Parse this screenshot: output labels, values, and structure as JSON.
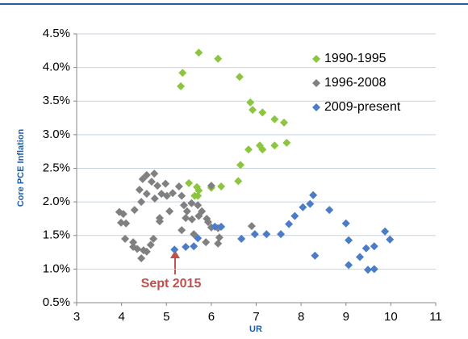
{
  "chart_data": {
    "type": "scatter",
    "y_label": "Core PCE Inflation",
    "x_label": "UR",
    "annotation": "Sept 2015",
    "xlim": [
      3,
      11
    ],
    "xticks": [
      3,
      4,
      5,
      6,
      7,
      8,
      9,
      10,
      11
    ],
    "ylim": [
      0.5,
      4.5
    ],
    "yticks": [
      {
        "value": 0.5,
        "label": "0.5%"
      },
      {
        "value": 1.0,
        "label": "1.0%"
      },
      {
        "value": 1.5,
        "label": "1.5%"
      },
      {
        "value": 2.0,
        "label": "2.0%"
      },
      {
        "value": 2.5,
        "label": "2.5%"
      },
      {
        "value": 3.0,
        "label": "3.0%"
      },
      {
        "value": 3.5,
        "label": "3.5%"
      },
      {
        "value": 4.0,
        "label": "4.0%"
      },
      {
        "value": 4.5,
        "label": "4.5%"
      }
    ],
    "grid": true,
    "legend": "top-right",
    "series": [
      {
        "name": "1990-1995",
        "color": "#8cc63f",
        "x": [
          5.36,
          5.32,
          5.72,
          6.15,
          6.63,
          6.87,
          6.92,
          7.14,
          7.41,
          7.62,
          7.68,
          7.41,
          7.14,
          7.08,
          6.83,
          6.65,
          6.6,
          6.22,
          6.0,
          5.68,
          5.72,
          5.63,
          5.7,
          5.5
        ],
        "values": [
          3.92,
          3.72,
          4.22,
          4.13,
          3.86,
          3.48,
          3.37,
          3.33,
          3.23,
          3.18,
          2.88,
          2.84,
          2.78,
          2.84,
          2.78,
          2.55,
          2.31,
          2.23,
          2.21,
          2.22,
          2.17,
          2.09,
          2.09,
          2.28
        ]
      },
      {
        "name": "1996-2008",
        "color": "#808080",
        "x": [
          3.95,
          4.04,
          3.99,
          4.1,
          4.08,
          4.26,
          4.35,
          4.44,
          4.49,
          4.56,
          4.65,
          4.71,
          4.29,
          4.44,
          4.4,
          4.47,
          4.56,
          4.73,
          4.67,
          4.8,
          4.98,
          4.56,
          4.74,
          4.89,
          5.01,
          5.14,
          5.28,
          5.34,
          5.39,
          5.46,
          5.43,
          5.57,
          5.72,
          5.56,
          5.7,
          5.79,
          5.9,
          5.93,
          6.0,
          6.15,
          6.18,
          6.15,
          5.88,
          5.61,
          5.34,
          4.85,
          4.85,
          5.07,
          6.0,
          6.9,
          4.26
        ],
        "values": [
          1.85,
          1.82,
          1.69,
          1.68,
          1.45,
          1.33,
          1.3,
          1.16,
          1.28,
          1.26,
          1.36,
          1.45,
          1.88,
          2.0,
          2.18,
          2.34,
          2.4,
          2.42,
          2.3,
          2.24,
          2.27,
          2.12,
          2.05,
          2.12,
          2.09,
          2.13,
          2.23,
          2.09,
          1.95,
          1.86,
          1.76,
          1.74,
          1.79,
          1.98,
          1.95,
          1.86,
          1.75,
          1.7,
          1.62,
          1.61,
          1.47,
          1.38,
          1.4,
          1.52,
          1.58,
          1.76,
          1.71,
          1.86,
          2.24,
          1.64,
          1.4
        ]
      },
      {
        "name": "2009-present",
        "color": "#4a7cc7",
        "x": [
          8.27,
          8.2,
          8.04,
          7.86,
          7.73,
          7.55,
          7.23,
          6.97,
          6.67,
          8.63,
          9.0,
          9.06,
          8.31,
          9.06,
          9.31,
          9.45,
          9.63,
          9.49,
          9.63,
          9.87,
          9.98,
          6.22,
          6.08,
          5.7,
          5.61,
          5.43,
          5.18
        ],
        "values": [
          2.1,
          1.97,
          1.92,
          1.79,
          1.67,
          1.52,
          1.52,
          1.52,
          1.45,
          1.88,
          1.68,
          1.43,
          1.2,
          1.06,
          1.18,
          1.31,
          1.34,
          0.99,
          1.0,
          1.56,
          1.44,
          1.63,
          1.63,
          1.46,
          1.34,
          1.33,
          1.29
        ]
      }
    ]
  }
}
